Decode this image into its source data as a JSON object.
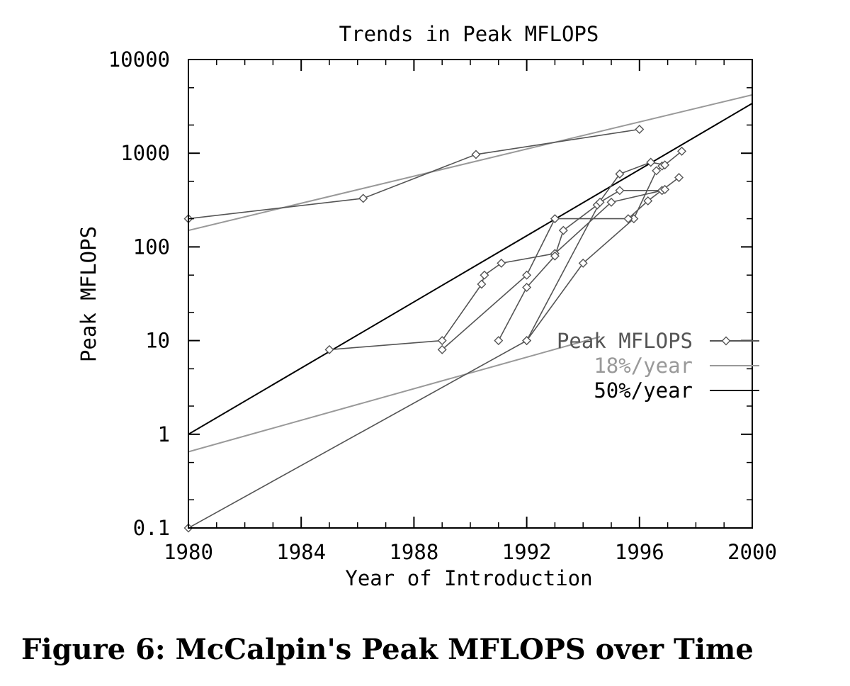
{
  "caption": "Figure 6: McCalpin's Peak MFLOPS over Time",
  "chart_data": {
    "type": "line",
    "title": "Trends in Peak MFLOPS",
    "xlabel": "Year of Introduction",
    "ylabel": "Peak MFLOPS",
    "xlim": [
      1980,
      2000
    ],
    "ylim": [
      0.1,
      10000
    ],
    "yscale": "log",
    "xticks": [
      1980,
      1984,
      1988,
      1992,
      1996,
      2000
    ],
    "xtick_labels": [
      "1980",
      "1984",
      "1988",
      "1992",
      "1996",
      "2000"
    ],
    "yticks": [
      0.1,
      1,
      10,
      100,
      1000,
      10000
    ],
    "ytick_labels": [
      "0.1",
      "1",
      "10",
      "100",
      "1000",
      "10000"
    ],
    "legend_position": "right-center",
    "legend": [
      {
        "label": "Peak MFLOPS",
        "style": "marker-line"
      },
      {
        "label": "18%/year",
        "style": "light-line"
      },
      {
        "label": "50%/year",
        "style": "dark-line"
      }
    ],
    "peak_series": [
      {
        "points": [
          [
            1980,
            0.1
          ],
          [
            1992,
            10
          ],
          [
            1994,
            67
          ],
          [
            1995.8,
            200
          ],
          [
            1996.6,
            650
          ],
          [
            1996.8,
            730
          ]
        ]
      },
      {
        "points": [
          [
            1985,
            8
          ],
          [
            1989,
            10
          ],
          [
            1990.4,
            40
          ],
          [
            1990.5,
            50
          ],
          [
            1991.1,
            67
          ],
          [
            1993,
            85
          ],
          [
            1995,
            300
          ],
          [
            1996.8,
            400
          ]
        ]
      },
      {
        "points": [
          [
            1989,
            8
          ],
          [
            1992,
            50
          ],
          [
            1993,
            200
          ],
          [
            1995.6,
            200
          ],
          [
            1996.3,
            310
          ],
          [
            1997.4,
            550
          ]
        ]
      },
      {
        "points": [
          [
            1991,
            10
          ],
          [
            1992,
            37
          ],
          [
            1993,
            80
          ],
          [
            1993.3,
            150
          ],
          [
            1994.5,
            280
          ],
          [
            1995.3,
            600
          ],
          [
            1996.4,
            800
          ],
          [
            1996.9,
            750
          ],
          [
            1997.5,
            1050
          ]
        ]
      },
      {
        "points": [
          [
            1992,
            10
          ],
          [
            1994.6,
            300
          ],
          [
            1995.3,
            400
          ],
          [
            1996.8,
            400
          ],
          [
            1996.9,
            410
          ]
        ]
      },
      {
        "points": [
          [
            1980,
            200
          ],
          [
            1986.2,
            330
          ],
          [
            1990.2,
            970
          ],
          [
            1996,
            1800
          ]
        ]
      }
    ],
    "trend_18": [
      {
        "points": [
          [
            1980,
            0.65
          ],
          [
            1994.6,
            11
          ]
        ]
      },
      {
        "points": [
          [
            1980,
            150
          ],
          [
            2000,
            4200
          ]
        ]
      }
    ],
    "trend_50": [
      {
        "points": [
          [
            1980,
            1
          ],
          [
            2000,
            3400
          ]
        ]
      }
    ],
    "colors": {
      "peak": "#555555",
      "trend18": "#999999",
      "trend50": "#000000",
      "axis": "#000000"
    }
  }
}
